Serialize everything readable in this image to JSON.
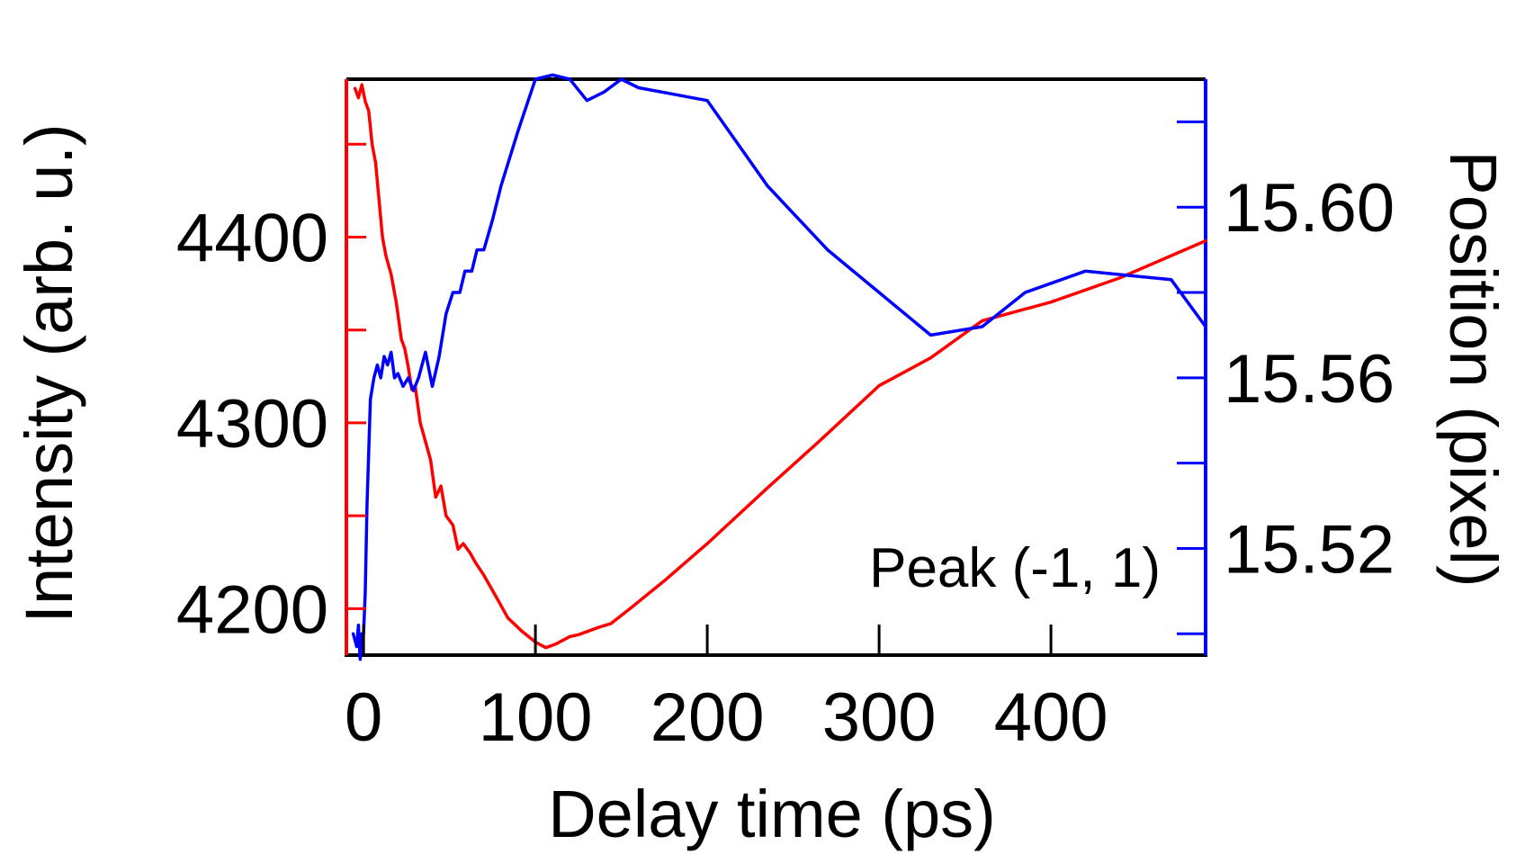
{
  "chart_data": {
    "type": "line",
    "xlabel": "Delay time (ps)",
    "ylabel_left": "Intensity (arb. u.)",
    "ylabel_right": "Position (pixel)",
    "annotation": "Peak (-1, 1)",
    "xlim": [
      -10,
      490
    ],
    "ylim_left": [
      4175,
      4485
    ],
    "ylim_right": [
      15.495,
      15.63
    ],
    "x_ticks": [
      0,
      100,
      200,
      300,
      400
    ],
    "x_minor_ticks": [],
    "left_ticks": [
      4200,
      4300,
      4400
    ],
    "left_minor_ticks": [
      4250,
      4350,
      4450
    ],
    "right_ticks": [
      15.52,
      15.56,
      15.6
    ],
    "right_tick_labels": [
      "15.52",
      "15.56",
      "15.60"
    ],
    "right_minor_ticks": [
      15.5,
      15.54,
      15.58,
      15.62
    ],
    "grid": false,
    "colors": {
      "intensity": "#ff0000",
      "position": "#0000ff",
      "frame": "#000000"
    },
    "series": [
      {
        "axis": "left",
        "color": "#ff0000",
        "x": [
          -5,
          -3,
          -1,
          1,
          3,
          5,
          7,
          9,
          11,
          13,
          16,
          19,
          22,
          24,
          26,
          28,
          30,
          33,
          36,
          39,
          42,
          45,
          48,
          52,
          55,
          58,
          62,
          65,
          70,
          78,
          84,
          92,
          100,
          106,
          112,
          120,
          125,
          131,
          137,
          144,
          155,
          175,
          200,
          235,
          265,
          300,
          330,
          360,
          400,
          440,
          470,
          490
        ],
        "y": [
          4480,
          4475,
          4482,
          4473,
          4468,
          4450,
          4440,
          4420,
          4400,
          4390,
          4380,
          4365,
          4345,
          4340,
          4330,
          4318,
          4320,
          4300,
          4290,
          4280,
          4260,
          4266,
          4250,
          4245,
          4232,
          4235,
          4230,
          4225,
          4218,
          4205,
          4195,
          4188,
          4182,
          4179,
          4181,
          4185,
          4186,
          4188,
          4190,
          4192,
          4200,
          4215,
          4235,
          4265,
          4290,
          4320,
          4335,
          4355,
          4365,
          4378,
          4390,
          4398
        ]
      },
      {
        "axis": "right",
        "color": "#0000ff",
        "x": [
          -6,
          -4,
          -3,
          -2,
          -1,
          0,
          1,
          2,
          4,
          6,
          8,
          10,
          12,
          14,
          16,
          18,
          20,
          23,
          26,
          29,
          32,
          36,
          40,
          44,
          48,
          52,
          56,
          59,
          63,
          66,
          70,
          75,
          80,
          90,
          100,
          110,
          120,
          130,
          140,
          150,
          160,
          200,
          235,
          270,
          300,
          330,
          360,
          385,
          420,
          470,
          490
        ],
        "y": [
          15.5,
          15.497,
          15.502,
          15.494,
          15.5,
          15.5,
          15.51,
          15.53,
          15.555,
          15.56,
          15.563,
          15.56,
          15.565,
          15.563,
          15.566,
          15.56,
          15.561,
          15.558,
          15.56,
          15.557,
          15.56,
          15.566,
          15.558,
          15.565,
          15.575,
          15.58,
          15.58,
          15.585,
          15.585,
          15.59,
          15.59,
          15.597,
          15.605,
          15.618,
          15.63,
          15.631,
          15.63,
          15.625,
          15.627,
          15.63,
          15.628,
          15.625,
          15.605,
          15.59,
          15.58,
          15.57,
          15.572,
          15.58,
          15.585,
          15.583,
          15.572
        ]
      }
    ]
  }
}
